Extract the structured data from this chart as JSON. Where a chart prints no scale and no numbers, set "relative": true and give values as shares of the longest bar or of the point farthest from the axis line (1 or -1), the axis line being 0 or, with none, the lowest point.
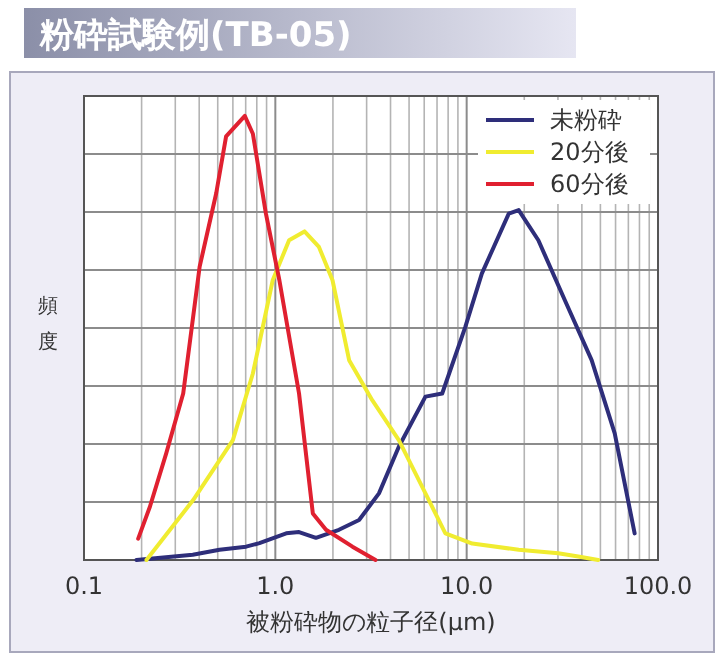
{
  "chart_data": {
    "type": "line",
    "title": "粉砕試験例(TB-05)",
    "xlabel": "被粉砕物の粒子径(µm)",
    "ylabel": "頻度",
    "relative": true,
    "log": "x",
    "xlim": [
      0.1,
      100
    ],
    "xticks": [
      0.1,
      {
        "value": 1,
        "label": "1.0"
      },
      {
        "value": 10,
        "label": "10.0"
      },
      {
        "value": 100,
        "label": "100.0"
      }
    ],
    "grid": true,
    "legend": "top right",
    "series": [
      {
        "name": "未粉砕",
        "color": "#2e2e7a",
        "x": [
          0.188,
          0.37,
          0.511,
          0.703,
          0.826,
          1.14,
          1.33,
          1.63,
          2.15,
          2.74,
          3.48,
          4.42,
          6.09,
          7.45,
          9.84,
          12.0,
          16.6,
          18.7,
          23.7,
          32.6,
          45.0,
          59.4,
          75.5
        ],
        "values": [
          0,
          0.012,
          0.023,
          0.03,
          0.038,
          0.06,
          0.063,
          0.05,
          0.068,
          0.09,
          0.15,
          0.255,
          0.368,
          0.375,
          0.525,
          0.645,
          0.78,
          0.788,
          0.72,
          0.585,
          0.45,
          0.285,
          0.06
        ]
      },
      {
        "name": "20分後",
        "color": "#f0ec30",
        "x": [
          0.212,
          0.372,
          0.6,
          0.763,
          0.969,
          1.18,
          1.42,
          1.69,
          1.99,
          2.43,
          3.21,
          4.42,
          6.09,
          7.74,
          10.7,
          18.7,
          30.1,
          38.3,
          48.7
        ],
        "values": [
          0,
          0.135,
          0.27,
          0.42,
          0.63,
          0.72,
          0.74,
          0.705,
          0.63,
          0.45,
          0.36,
          0.27,
          0.15,
          0.06,
          0.037,
          0.023,
          0.015,
          0.008,
          0
        ]
      },
      {
        "name": "60分後",
        "color": "#e02030",
        "x": [
          0.192,
          0.221,
          0.269,
          0.33,
          0.402,
          0.491,
          0.553,
          0.693,
          0.763,
          0.893,
          1.05,
          1.33,
          1.57,
          1.84,
          2.53,
          3.34
        ],
        "values": [
          0.048,
          0.12,
          0.24,
          0.375,
          0.66,
          0.826,
          0.954,
          1.0,
          0.96,
          0.78,
          0.63,
          0.375,
          0.105,
          0.068,
          0.03,
          0
        ]
      }
    ]
  }
}
